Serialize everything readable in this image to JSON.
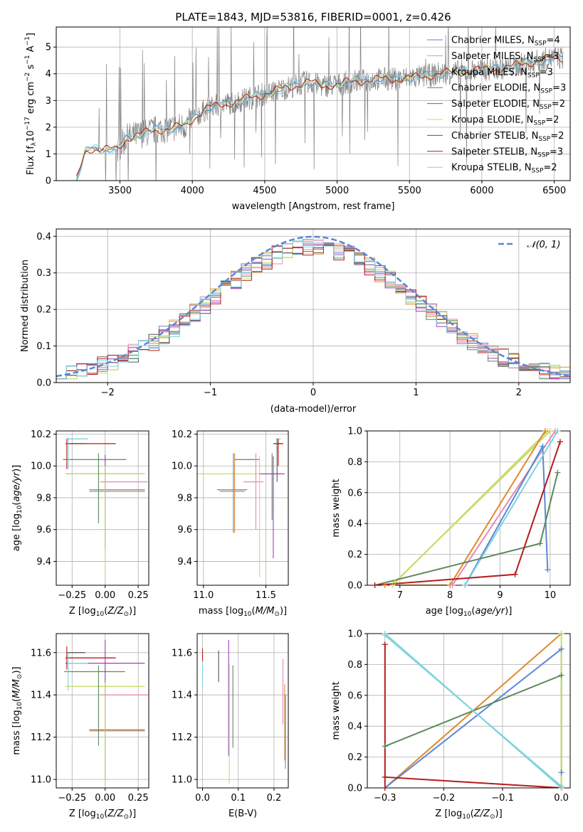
{
  "figure_title": "PLATE=1843, MJD=53816, FIBERID=0001, z=0.426",
  "colors": {
    "chabrier_miles": "#5b86d6",
    "salpeter_miles": "#e58ab7",
    "kroupa_miles": "#e08a2c",
    "chabrier_elodie": "#5a8a5e",
    "salpeter_elodie": "#9c3fc1",
    "kroupa_elodie": "#c9dc6a",
    "chabrier_stelib": "#555555",
    "salpeter_stelib": "#b51c1c",
    "kroupa_stelib": "#7fd3dc",
    "spectrum": "#808080",
    "gaussian": "#5b86d6",
    "grid": "#b0b0b0"
  },
  "chart_data": [
    {
      "id": "spectrum",
      "type": "line",
      "xlabel": "wavelength [Angstrom, rest frame]",
      "ylabel_html": "Flux [f<tspan font-size='9' dy='3'>λ</tspan><tspan dy='-3'>10</tspan><tspan font-size='9' dy='-6'>−17</tspan><tspan dy='6'> erg cm</tspan><tspan font-size='9' dy='-6'>−2</tspan><tspan dy='6'> s</tspan><tspan font-size='9' dy='-6'>−1</tspan><tspan dy='6'> A</tspan><tspan font-size='9' dy='-6'>−1</tspan><tspan dy='6'>]</tspan>",
      "xlim": [
        3060,
        6610
      ],
      "ylim": [
        0,
        5.75
      ],
      "xticks": [
        3500,
        4000,
        4500,
        5000,
        5500,
        6000,
        6500
      ],
      "yticks": [
        0,
        1,
        2,
        3,
        4,
        5
      ],
      "continuum": {
        "x": [
          3200,
          3260,
          3300,
          3400,
          3480,
          3550,
          3650,
          3750,
          3850,
          3950,
          4000,
          4100,
          4200,
          4300,
          4400,
          4500,
          4600,
          4700,
          4800,
          4900,
          5000,
          5100,
          5200,
          5300,
          5400,
          5500,
          5600,
          5700,
          5800,
          5900,
          6000,
          6100,
          6200,
          6300,
          6400,
          6500
        ],
        "y": [
          0.0,
          1.05,
          1.2,
          1.18,
          1.15,
          1.6,
          1.75,
          1.9,
          1.95,
          2.05,
          2.3,
          2.7,
          2.85,
          2.95,
          3.1,
          3.25,
          3.4,
          3.55,
          3.7,
          3.55,
          3.6,
          3.7,
          3.75,
          3.8,
          3.8,
          3.85,
          3.9,
          4.0,
          4.05,
          4.1,
          4.15,
          4.2,
          4.25,
          4.4,
          4.5,
          4.6
        ]
      },
      "legend": [
        {
          "label": "Chabrier MILES, N",
          "sub": "SSP",
          "tail": "=4",
          "color_key": "chabrier_miles"
        },
        {
          "label": "Salpeter MILES, N",
          "sub": "SSP",
          "tail": "=3",
          "color_key": "salpeter_miles"
        },
        {
          "label": "Kroupa MILES, N",
          "sub": "SSP",
          "tail": "=3",
          "color_key": "kroupa_miles"
        },
        {
          "label": "Chabrier ELODIE, N",
          "sub": "SSP",
          "tail": "=3",
          "color_key": "chabrier_elodie"
        },
        {
          "label": "Salpeter ELODIE, N",
          "sub": "SSP",
          "tail": "=2",
          "color_key": "salpeter_elodie"
        },
        {
          "label": "Kroupa ELODIE, N",
          "sub": "SSP",
          "tail": "=2",
          "color_key": "kroupa_elodie"
        },
        {
          "label": "Chabrier STELIB, N",
          "sub": "SSP",
          "tail": "=2",
          "color_key": "chabrier_stelib"
        },
        {
          "label": "Salpeter STELIB, N",
          "sub": "SSP",
          "tail": "=3",
          "color_key": "salpeter_stelib"
        },
        {
          "label": "Kroupa STELIB, N",
          "sub": "SSP",
          "tail": "=2",
          "color_key": "kroupa_stelib"
        }
      ]
    },
    {
      "id": "residuals",
      "type": "histogram",
      "xlabel": "(data-model)/error",
      "ylabel": "Normed distribution",
      "xlim": [
        -2.5,
        2.5
      ],
      "ylim": [
        0,
        0.42
      ],
      "xticks": [
        -2,
        -1,
        0,
        1,
        2
      ],
      "yticks": [
        0.0,
        0.1,
        0.2,
        0.3,
        0.4
      ],
      "gaussian_label": "𝒩(0, 1)",
      "bin_width": 0.1,
      "series_colors": [
        "chabrier_miles",
        "salpeter_miles",
        "kroupa_miles",
        "chabrier_elodie",
        "salpeter_elodie",
        "kroupa_elodie",
        "chabrier_stelib",
        "salpeter_stelib",
        "kroupa_stelib"
      ]
    },
    {
      "id": "age_vs_Z",
      "type": "errorbar",
      "xlabel": "Z [log10(Z/Z⊙)]",
      "ylabel": "age [log10(age/yr)]",
      "xlim": [
        -0.37,
        0.33
      ],
      "ylim": [
        9.25,
        10.22
      ],
      "xticks": [
        -0.25,
        0.0,
        0.25
      ],
      "yticks": [
        9.4,
        9.6,
        9.8,
        10.0,
        10.2
      ],
      "points": [
        {
          "c": "chabrier_miles",
          "x": 0.09,
          "xe": 0.21,
          "y": 9.85,
          "ye": 0.0
        },
        {
          "c": "salpeter_miles",
          "x": 0.14,
          "xe": 0.18,
          "y": 9.9,
          "ye": 0.0
        },
        {
          "c": "kroupa_miles",
          "x": 0.09,
          "xe": 0.21,
          "y": 9.84,
          "ye": 0.0
        },
        {
          "c": "chabrier_elodie",
          "x": -0.08,
          "xe": 0.24,
          "y": 10.04,
          "ye": 0.0
        },
        {
          "c": "salpeter_elodie",
          "x": 0.0,
          "xe": 0.3,
          "y": 9.95,
          "ye": 0.0
        },
        {
          "c": "kroupa_elodie",
          "x": 0.0,
          "xe": 0.3,
          "y": 9.95,
          "ye": 0.0
        },
        {
          "c": "chabrier_stelib",
          "x": -0.22,
          "xe": 0.07,
          "y": 10.14,
          "ye": 0.0
        },
        {
          "c": "salpeter_stelib",
          "x": -0.11,
          "xe": 0.19,
          "y": 10.14,
          "ye": 0.0
        },
        {
          "c": "kroupa_stelib",
          "x": -0.21,
          "xe": 0.08,
          "y": 10.17,
          "ye": 0.0
        }
      ],
      "vbars": [
        {
          "c": "chabrier_elodie",
          "x": -0.05,
          "y0": 9.64,
          "y1": 10.08
        },
        {
          "c": "salpeter_elodie",
          "x": 0.0,
          "y0": 9.48,
          "y1": 10.07
        },
        {
          "c": "kroupa_elodie",
          "x": 0.0,
          "y0": 9.28,
          "y1": 10.0
        },
        {
          "c": "salpeter_stelib",
          "x": -0.29,
          "y0": 9.98,
          "y1": 10.17
        },
        {
          "c": "kroupa_stelib",
          "x": -0.28,
          "y0": 9.98,
          "y1": 10.18
        }
      ]
    },
    {
      "id": "age_vs_mass",
      "type": "errorbar",
      "xlabel": "mass [log10(M/M⊙)]",
      "xlim": [
        10.95,
        11.68
      ],
      "ylim": [
        9.25,
        10.22
      ],
      "xticks": [
        11.0,
        11.5
      ],
      "yticks": [
        9.4,
        9.6,
        9.8,
        10.0,
        10.2
      ],
      "points": [
        {
          "c": "chabrier_miles",
          "x": 11.23,
          "xe": 0.12,
          "y": 9.85
        },
        {
          "c": "salpeter_miles",
          "x": 11.4,
          "xe": 0.08,
          "y": 9.9
        },
        {
          "c": "kroupa_miles",
          "x": 11.23,
          "xe": 0.1,
          "y": 9.84
        },
        {
          "c": "chabrier_elodie",
          "x": 11.35,
          "xe": 0.1,
          "y": 10.04
        },
        {
          "c": "salpeter_elodie",
          "x": 11.55,
          "xe": 0.1,
          "y": 9.95
        },
        {
          "c": "kroupa_elodie",
          "x": 11.2,
          "xe": 0.25,
          "y": 9.95
        },
        {
          "c": "chabrier_stelib",
          "x": 11.6,
          "xe": 0.02,
          "y": 10.14
        },
        {
          "c": "salpeter_stelib",
          "x": 11.6,
          "xe": 0.04,
          "y": 10.14
        },
        {
          "c": "kroupa_stelib",
          "x": 11.6,
          "xe": 0.02,
          "y": 10.17
        }
      ],
      "vbars": [
        {
          "c": "chabrier_miles",
          "x": 11.24,
          "y0": 9.58,
          "y1": 10.08
        },
        {
          "c": "salpeter_miles",
          "x": 11.42,
          "y0": 9.6,
          "y1": 10.08
        },
        {
          "c": "kroupa_miles",
          "x": 11.25,
          "y0": 9.58,
          "y1": 10.08
        },
        {
          "c": "kroupa_elodie",
          "x": 11.45,
          "y0": 9.3,
          "y1": 10.06
        },
        {
          "c": "chabrier_elodie",
          "x": 11.55,
          "y0": 9.66,
          "y1": 10.08
        },
        {
          "c": "salpeter_elodie",
          "x": 11.56,
          "y0": 9.42,
          "y1": 10.06
        },
        {
          "c": "chabrier_stelib",
          "x": 11.59,
          "y0": 9.9,
          "y1": 10.17
        },
        {
          "c": "salpeter_stelib",
          "x": 11.6,
          "y0": 10.0,
          "y1": 10.17
        }
      ]
    },
    {
      "id": "massweight_vs_age",
      "type": "line",
      "xlabel": "age [log10(age/yr)]",
      "ylabel": "mass weight",
      "xlim": [
        6.35,
        10.4
      ],
      "ylim": [
        0,
        1
      ],
      "xticks": [
        7,
        8,
        9,
        10
      ],
      "yticks": [
        0.0,
        0.2,
        0.4,
        0.6,
        0.8,
        1.0
      ],
      "series": [
        {
          "c": "kroupa_elodie",
          "x": [
            6.85,
            9.95
          ],
          "y": [
            0.0,
            1.0
          ]
        },
        {
          "c": "kroupa_elodie",
          "x": [
            6.9,
            10.0
          ],
          "y": [
            0.02,
            1.0
          ]
        },
        {
          "c": "kroupa_miles",
          "x": [
            6.7,
            8.0,
            9.9
          ],
          "y": [
            0.0,
            0.0,
            1.0
          ]
        },
        {
          "c": "salpeter_miles",
          "x": [
            8.05,
            10.1
          ],
          "y": [
            0.0,
            1.0
          ]
        },
        {
          "c": "chabrier_miles",
          "x": [
            8.3,
            9.85,
            9.95
          ],
          "y": [
            0.0,
            0.9,
            0.1
          ]
        },
        {
          "c": "kroupa_stelib",
          "x": [
            8.3,
            10.15
          ],
          "y": [
            0.0,
            1.0
          ]
        },
        {
          "c": "chabrier_elodie",
          "x": [
            6.5,
            9.8,
            10.15
          ],
          "y": [
            0.0,
            0.27,
            0.73
          ]
        },
        {
          "c": "salpeter_stelib",
          "x": [
            6.5,
            9.3,
            10.2
          ],
          "y": [
            0.0,
            0.07,
            0.93
          ]
        }
      ]
    },
    {
      "id": "mass_vs_Z",
      "type": "errorbar",
      "xlabel": "Z [log10(Z/Z⊙)]",
      "ylabel": "mass [log10(M/M⊙)]",
      "xlim": [
        -0.37,
        0.33
      ],
      "ylim": [
        10.96,
        11.69
      ],
      "xticks": [
        -0.25,
        0.0,
        0.25
      ],
      "yticks": [
        11.0,
        11.2,
        11.4,
        11.6
      ],
      "points": [
        {
          "c": "chabrier_miles",
          "x": 0.09,
          "xe": 0.21,
          "y": 11.235
        },
        {
          "c": "salpeter_miles",
          "x": 0.14,
          "xe": 0.18,
          "y": 11.4
        },
        {
          "c": "kroupa_miles",
          "x": 0.09,
          "xe": 0.21,
          "y": 11.23
        },
        {
          "c": "chabrier_elodie",
          "x": -0.08,
          "xe": 0.23,
          "y": 11.51
        },
        {
          "c": "salpeter_elodie",
          "x": 0.0,
          "xe": 0.3,
          "y": 11.55
        },
        {
          "c": "kroupa_elodie",
          "x": 0.0,
          "xe": 0.3,
          "y": 11.44
        },
        {
          "c": "chabrier_stelib",
          "x": -0.22,
          "xe": 0.07,
          "y": 11.6
        },
        {
          "c": "salpeter_stelib",
          "x": -0.11,
          "xe": 0.19,
          "y": 11.575
        },
        {
          "c": "kroupa_stelib",
          "x": -0.21,
          "xe": 0.08,
          "y": 11.55
        }
      ],
      "vbars": [
        {
          "c": "chabrier_elodie",
          "x": -0.05,
          "y0": 11.16,
          "y1": 11.54
        },
        {
          "c": "salpeter_elodie",
          "x": 0.0,
          "y0": 11.0,
          "y1": 11.66
        },
        {
          "c": "kroupa_elodie",
          "x": 0.0,
          "y0": 10.98,
          "y1": 11.46
        },
        {
          "c": "salpeter_stelib",
          "x": -0.29,
          "y0": 11.52,
          "y1": 11.63
        },
        {
          "c": "kroupa_stelib",
          "x": -0.28,
          "y0": 11.42,
          "y1": 11.6
        }
      ]
    },
    {
      "id": "mass_vs_ebv",
      "type": "errorbar",
      "xlabel": "E(B-V)",
      "xlim": [
        -0.015,
        0.24
      ],
      "ylim": [
        10.96,
        11.69
      ],
      "xticks": [
        0.0,
        0.1,
        0.2
      ],
      "yticks": [
        11.0,
        11.2,
        11.4,
        11.6
      ],
      "vbars": [
        {
          "c": "kroupa_stelib",
          "x": 0.0,
          "y0": 11.44,
          "y1": 11.6
        },
        {
          "c": "salpeter_stelib",
          "x": 0.0,
          "y0": 11.56,
          "y1": 11.62
        },
        {
          "c": "chabrier_stelib",
          "x": 0.045,
          "y0": 11.46,
          "y1": 11.61
        },
        {
          "c": "salpeter_elodie",
          "x": 0.073,
          "y0": 11.11,
          "y1": 11.66
        },
        {
          "c": "kroupa_elodie",
          "x": 0.075,
          "y0": 10.98,
          "y1": 11.55
        },
        {
          "c": "chabrier_elodie",
          "x": 0.085,
          "y0": 11.15,
          "y1": 11.54
        },
        {
          "c": "salpeter_miles",
          "x": 0.225,
          "y0": 11.26,
          "y1": 11.57
        },
        {
          "c": "kroupa_miles",
          "x": 0.23,
          "y0": 11.09,
          "y1": 11.45
        },
        {
          "c": "chabrier_miles",
          "x": 0.232,
          "y0": 11.05,
          "y1": 11.4
        }
      ]
    },
    {
      "id": "massweight_vs_Z",
      "type": "line",
      "xlabel": "Z [log10(Z/Z⊙)]",
      "ylabel": "mass weight",
      "xlim": [
        -0.33,
        0.015
      ],
      "ylim": [
        0,
        1
      ],
      "xticks": [
        -0.3,
        -0.2,
        -0.1,
        0.0
      ],
      "yticks": [
        0.0,
        0.2,
        0.4,
        0.6,
        0.8,
        1.0
      ],
      "series": [
        {
          "c": "kroupa_stelib",
          "x": [
            -0.3,
            0.0
          ],
          "y": [
            1.0,
            0.0
          ]
        },
        {
          "c": "kroupa_miles",
          "x": [
            -0.3,
            0.0
          ],
          "y": [
            0.0,
            1.0
          ]
        },
        {
          "c": "chabrier_miles",
          "x": [
            -0.3,
            0.0,
            0.0
          ],
          "y": [
            0.0,
            0.9,
            0.1
          ]
        },
        {
          "c": "chabrier_elodie",
          "x": [
            -0.3,
            0.0,
            0.0
          ],
          "y": [
            0.27,
            0.73,
            0.0
          ]
        },
        {
          "c": "salpeter_stelib",
          "x": [
            -0.3,
            -0.3,
            -0.3,
            0.0
          ],
          "y": [
            0.93,
            0.0,
            0.07,
            0.0
          ]
        },
        {
          "c": "kroupa_elodie",
          "x": [
            0.0,
            0.0
          ],
          "y": [
            0.0,
            1.0
          ]
        },
        {
          "c": "kroupa_stelib",
          "x": [
            -0.3,
            0.0
          ],
          "y": [
            0.99,
            0.01
          ]
        }
      ]
    }
  ]
}
